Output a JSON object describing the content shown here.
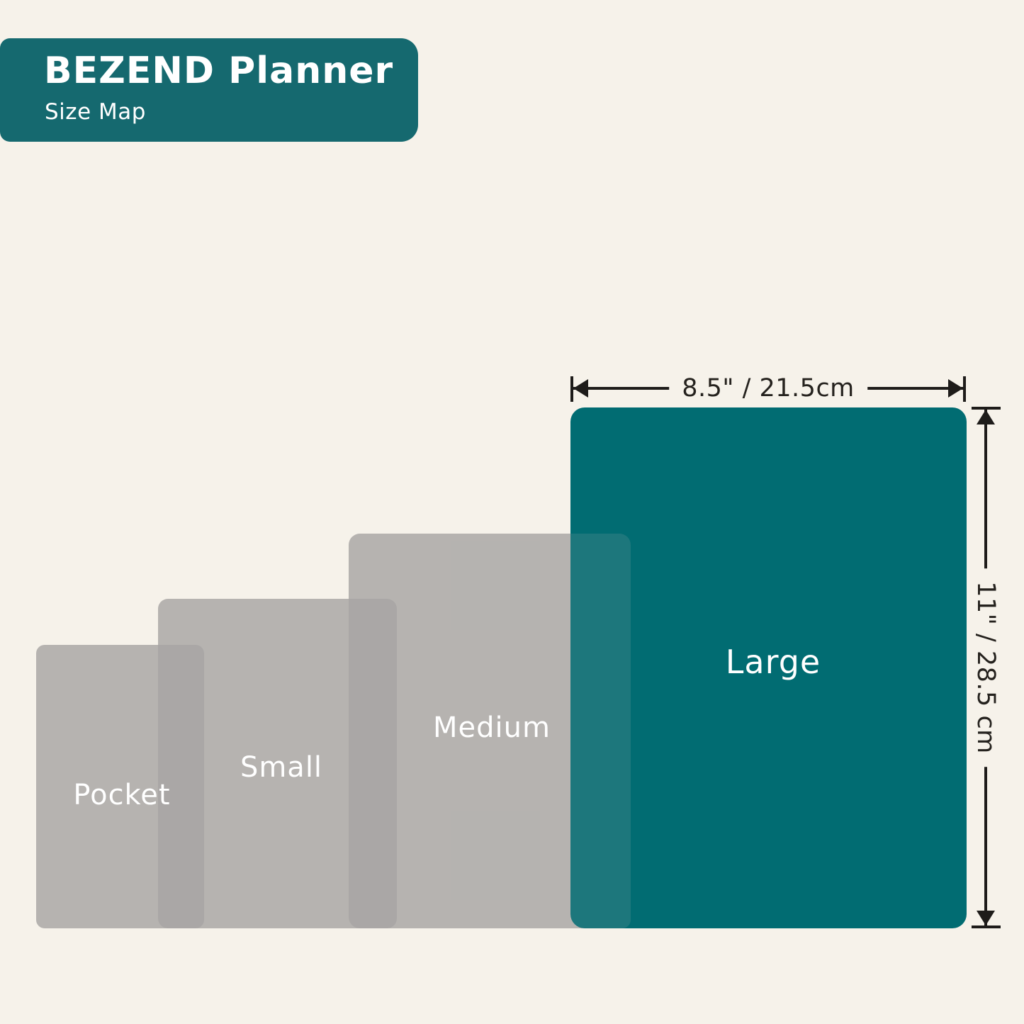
{
  "header": {
    "brand": "BEZEND Planner",
    "subtitle": "Size Map"
  },
  "sizes": [
    {
      "id": "pocket",
      "label": "Pocket"
    },
    {
      "id": "small",
      "label": "Small"
    },
    {
      "id": "medium",
      "label": "Medium"
    },
    {
      "id": "large",
      "label": "Large"
    }
  ],
  "dimensions": {
    "width_label": "8.5\" / 21.5cm",
    "height_label": "11\" / 28.5 cm"
  },
  "colors": {
    "background": "#F6F2EA",
    "badge_teal": "#15696F",
    "large_teal": "#016C72",
    "gray_overlay": "rgba(167,165,163,0.82)",
    "arrow": "#1E1C1A",
    "label_text": "#FFFFFF",
    "dimension_text": "#25221E"
  }
}
